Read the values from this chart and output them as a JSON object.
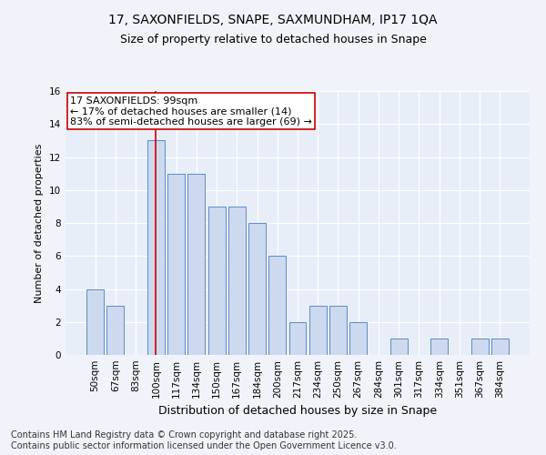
{
  "title1": "17, SAXONFIELDS, SNAPE, SAXMUNDHAM, IP17 1QA",
  "title2": "Size of property relative to detached houses in Snape",
  "xlabel": "Distribution of detached houses by size in Snape",
  "ylabel": "Number of detached properties",
  "categories": [
    "50sqm",
    "67sqm",
    "83sqm",
    "100sqm",
    "117sqm",
    "134sqm",
    "150sqm",
    "167sqm",
    "184sqm",
    "200sqm",
    "217sqm",
    "234sqm",
    "250sqm",
    "267sqm",
    "284sqm",
    "301sqm",
    "317sqm",
    "334sqm",
    "351sqm",
    "367sqm",
    "384sqm"
  ],
  "values": [
    4,
    3,
    0,
    13,
    11,
    11,
    9,
    9,
    8,
    6,
    2,
    3,
    3,
    2,
    0,
    1,
    0,
    1,
    0,
    1,
    1
  ],
  "bar_color": "#ccd9ee",
  "bar_edge_color": "#5b8cc8",
  "highlight_index": 3,
  "highlight_line_color": "#cc0000",
  "annotation_text": "17 SAXONFIELDS: 99sqm\n← 17% of detached houses are smaller (14)\n83% of semi-detached houses are larger (69) →",
  "annotation_box_color": "#ffffff",
  "annotation_box_edge": "#cc0000",
  "ylim": [
    0,
    16
  ],
  "yticks": [
    0,
    2,
    4,
    6,
    8,
    10,
    12,
    14,
    16
  ],
  "footer": "Contains HM Land Registry data © Crown copyright and database right 2025.\nContains public sector information licensed under the Open Government Licence v3.0.",
  "background_color": "#f0f4fa",
  "plot_background": "#e8eef8",
  "title_fontsize": 10,
  "subtitle_fontsize": 9,
  "ylabel_fontsize": 8,
  "xlabel_fontsize": 9,
  "tick_fontsize": 7.5,
  "footer_fontsize": 7,
  "annotation_fontsize": 8
}
